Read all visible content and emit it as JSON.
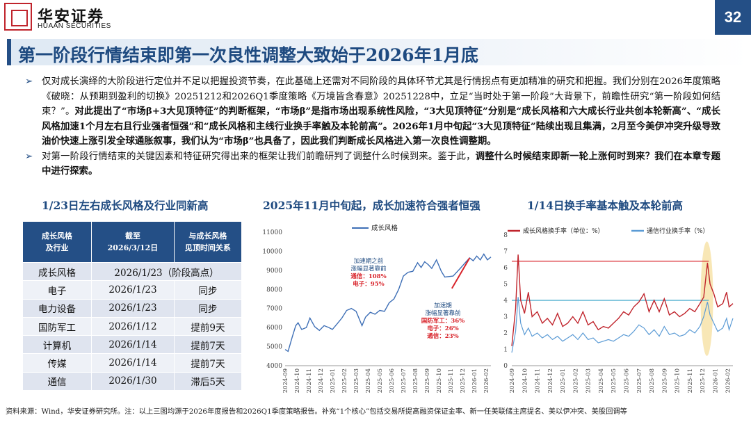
{
  "header": {
    "logo_cn": "华安证券",
    "logo_en": "HUAAN SECURITIES",
    "page_number": "32"
  },
  "title": "第一阶段行情结束即第一次良性调整大致始于2026年1月底",
  "bullets": {
    "b1": [
      {
        "t": "仅对成长演绎的大阶段进行定位并不足以把握投资节奏，在此基础上还需对不同阶段的具体环节尤其是行情拐点有更加精准的研究和把握。我们分别在2026年度策略《破晓：从预期到盈利的切换》20251212和2026Q1季度策略《万境皆含春意》20251228中，立足“当时处于第一阶段”大背景下，前瞻性研究“第一阶段如何结束？”。",
        "b": false
      },
      {
        "t": "对此提出了“市场β+3大见顶特征”的判断框架，“市场β”是指市场出现系统性风险，“3大见顶特征”分别是“成长风格和六大成长行业共创本轮新高”、“成长风格加速1个月左右且行业强者恒强”和“成长风格和主线行业换手率触及本轮前高”。2026年1月中旬起“3大见顶特征”陆续出现且集满，2月至今美伊冲突升级导致油价快速上涨引发全球通胀叙事，我们认为“市场β”也具备了，因此我们判断成长风格进入第一次良性调整期。",
        "b": true
      }
    ],
    "b2": [
      {
        "t": "对第一阶段行情结束的关键因素和特征研究得出来的框架让我们前瞻研判了调整什么时候到来。鉴于此，",
        "b": false
      },
      {
        "t": "调整什么时候结束即新一轮上涨何时到来？我们在本章专题中进行探索。",
        "b": true
      }
    ]
  },
  "sections": {
    "s1": "1/23日左右成长风格及行业同新高",
    "s2": "2025年11月中旬起，成长加速符合强者恒强",
    "s3": "1/14日换手率基本触及本轮前高"
  },
  "table": {
    "headers": [
      [
        "成长风格",
        "及行业"
      ],
      [
        "截至",
        "2026/3/12日"
      ],
      [
        "与成长风格",
        "见顶时间关系"
      ]
    ],
    "rows": [
      [
        "成长风格",
        "2026/1/23（阶段高点）",
        ""
      ],
      [
        "电子",
        "2026/1/23",
        "同步"
      ],
      [
        "电力设备",
        "2026/1/23",
        "同步"
      ],
      [
        "国防军工",
        "2026/1/12",
        "提前9天"
      ],
      [
        "计算机",
        "2026/1/14",
        "提前7天"
      ],
      [
        "传媒",
        "2026/1/14",
        "提前7天"
      ],
      [
        "通信",
        "2026/1/30",
        "滞后5天"
      ]
    ]
  },
  "chart_data": [
    {
      "type": "line",
      "title": "",
      "legend": [
        "成长风格"
      ],
      "colors": {
        "series": "#3e6fb6",
        "highlight": "#d8232a"
      },
      "x_ticks": [
        "2024-09",
        "2024-10",
        "2024-11",
        "2024-12",
        "2025-01",
        "2025-02",
        "2025-03",
        "2025-04",
        "2025-05",
        "2025-06",
        "2025-07",
        "2025-08",
        "2025-09",
        "2025-10",
        "2025-11",
        "2025-12",
        "2026-01",
        "2026-02"
      ],
      "ylim": [
        4000,
        11000
      ],
      "y_ticks": [
        4000,
        5000,
        6000,
        7000,
        8000,
        9000,
        10000,
        11000
      ],
      "series": [
        {
          "name": "成长风格",
          "points": [
            [
              0,
              4850
            ],
            [
              0.25,
              4750
            ],
            [
              0.6,
              5500
            ],
            [
              0.9,
              6100
            ],
            [
              1.1,
              6250
            ],
            [
              1.4,
              5900
            ],
            [
              1.8,
              6000
            ],
            [
              2.1,
              6500
            ],
            [
              2.5,
              6050
            ],
            [
              2.9,
              5850
            ],
            [
              3.3,
              6100
            ],
            [
              3.7,
              6000
            ],
            [
              4.0,
              5900
            ],
            [
              4.4,
              6200
            ],
            [
              4.8,
              6500
            ],
            [
              5.2,
              6900
            ],
            [
              5.6,
              7000
            ],
            [
              6.0,
              6850
            ],
            [
              6.5,
              6100
            ],
            [
              6.8,
              6550
            ],
            [
              7.2,
              6800
            ],
            [
              7.6,
              6700
            ],
            [
              8.0,
              6900
            ],
            [
              8.4,
              6850
            ],
            [
              8.8,
              7300
            ],
            [
              9.2,
              7500
            ],
            [
              9.6,
              8000
            ],
            [
              10.0,
              8700
            ],
            [
              10.4,
              8900
            ],
            [
              10.8,
              8950
            ],
            [
              11.2,
              9400
            ],
            [
              11.5,
              9150
            ],
            [
              11.8,
              9450
            ],
            [
              12.1,
              9300
            ],
            [
              12.4,
              9100
            ],
            [
              12.8,
              9550
            ],
            [
              13.2,
              8950
            ],
            [
              13.5,
              8650
            ],
            [
              14.2,
              8700
            ],
            [
              14.8,
              9100
            ],
            [
              15.3,
              9450
            ],
            [
              15.6,
              9650
            ],
            [
              15.9,
              9500
            ],
            [
              16.2,
              9750
            ],
            [
              16.5,
              9550
            ],
            [
              16.8,
              9850
            ],
            [
              17.1,
              9550
            ],
            [
              17.4,
              9700
            ]
          ]
        }
      ],
      "highlight_segment": [
        [
          14.1,
          8050
        ],
        [
          15.6,
          9650
        ]
      ],
      "annotations": [
        {
          "lines": [
            "加速期之前",
            "涨幅显著靠前"
          ],
          "red": [
            "通信：108%",
            "电子：95%"
          ]
        },
        {
          "lines": [
            "加速期",
            "涨幅显著靠前"
          ],
          "red": [
            "国防军工：36%",
            "电子：26%",
            "通信：23%"
          ]
        }
      ]
    },
    {
      "type": "line",
      "title": "",
      "legend": [
        "成长风格换手率（单位：%）",
        "通信行业换手率（%）"
      ],
      "colors": {
        "s1": "#c0242c",
        "s2": "#5b9bd5",
        "h1": "#d8232a",
        "h2": "#3fa7c9",
        "band": "#f2d37a"
      },
      "x_ticks": [
        "2024-09",
        "2024-10",
        "2024-11",
        "2024-12",
        "2025-01",
        "2025-02",
        "2025-03",
        "2025-04",
        "2025-05",
        "2025-06",
        "2025-07",
        "2025-08",
        "2025-09",
        "2025-10",
        "2025-11",
        "2025-12",
        "2026-01",
        "2026-02"
      ],
      "ylim": [
        0,
        8
      ],
      "y_ticks": [
        0,
        1,
        2,
        3,
        4,
        5,
        6,
        7,
        8
      ],
      "hlines": [
        6.4,
        4.0
      ],
      "series": [
        {
          "name": "成长风格换手率（单位：%）",
          "points": [
            [
              0,
              1.2
            ],
            [
              0.3,
              3.5
            ],
            [
              0.5,
              6.8
            ],
            [
              0.7,
              4.0
            ],
            [
              1.0,
              3.2
            ],
            [
              1.3,
              4.5
            ],
            [
              1.6,
              3.0
            ],
            [
              2.0,
              3.3
            ],
            [
              2.4,
              2.6
            ],
            [
              2.8,
              2.9
            ],
            [
              3.2,
              2.5
            ],
            [
              3.6,
              3.2
            ],
            [
              4.0,
              2.4
            ],
            [
              4.4,
              2.6
            ],
            [
              4.8,
              3.0
            ],
            [
              5.2,
              2.6
            ],
            [
              5.6,
              3.3
            ],
            [
              6.0,
              2.5
            ],
            [
              6.4,
              2.7
            ],
            [
              6.8,
              2.2
            ],
            [
              7.2,
              2.4
            ],
            [
              7.6,
              2.3
            ],
            [
              8.0,
              2.6
            ],
            [
              8.4,
              2.9
            ],
            [
              8.8,
              3.3
            ],
            [
              9.2,
              3.1
            ],
            [
              9.6,
              3.6
            ],
            [
              10.0,
              3.9
            ],
            [
              10.4,
              4.4
            ],
            [
              10.8,
              3.3
            ],
            [
              11.2,
              4.0
            ],
            [
              11.6,
              3.3
            ],
            [
              12.0,
              4.1
            ],
            [
              12.4,
              3.1
            ],
            [
              12.8,
              3.3
            ],
            [
              13.2,
              3.0
            ],
            [
              13.6,
              3.2
            ],
            [
              14.0,
              3.5
            ],
            [
              14.4,
              3.3
            ],
            [
              14.8,
              3.8
            ],
            [
              15.1,
              4.2
            ],
            [
              15.4,
              6.3
            ],
            [
              15.6,
              5.0
            ],
            [
              15.9,
              4.4
            ],
            [
              16.2,
              3.6
            ],
            [
              16.6,
              3.8
            ],
            [
              16.9,
              4.5
            ],
            [
              17.1,
              3.6
            ],
            [
              17.4,
              3.8
            ]
          ]
        },
        {
          "name": "通信行业换手率（%）",
          "points": [
            [
              0,
              0.8
            ],
            [
              0.3,
              2.1
            ],
            [
              0.5,
              4.2
            ],
            [
              0.7,
              2.6
            ],
            [
              1.0,
              1.9
            ],
            [
              1.3,
              2.3
            ],
            [
              1.6,
              1.8
            ],
            [
              2.0,
              2.0
            ],
            [
              2.4,
              1.7
            ],
            [
              2.8,
              1.9
            ],
            [
              3.2,
              1.6
            ],
            [
              3.6,
              1.8
            ],
            [
              4.0,
              1.5
            ],
            [
              4.4,
              1.7
            ],
            [
              4.8,
              1.9
            ],
            [
              5.2,
              1.6
            ],
            [
              5.6,
              2.0
            ],
            [
              6.0,
              1.6
            ],
            [
              6.4,
              1.7
            ],
            [
              6.8,
              1.4
            ],
            [
              7.2,
              1.5
            ],
            [
              7.6,
              1.6
            ],
            [
              8.0,
              1.5
            ],
            [
              8.4,
              1.7
            ],
            [
              8.8,
              1.9
            ],
            [
              9.2,
              1.8
            ],
            [
              9.6,
              2.1
            ],
            [
              10.0,
              2.5
            ],
            [
              10.4,
              2.3
            ],
            [
              10.8,
              1.9
            ],
            [
              11.2,
              2.2
            ],
            [
              11.6,
              1.8
            ],
            [
              12.0,
              2.4
            ],
            [
              12.4,
              1.9
            ],
            [
              12.8,
              2.0
            ],
            [
              13.2,
              1.8
            ],
            [
              13.6,
              1.9
            ],
            [
              14.0,
              2.2
            ],
            [
              14.4,
              2.0
            ],
            [
              14.8,
              2.4
            ],
            [
              15.1,
              3.0
            ],
            [
              15.4,
              3.9
            ],
            [
              15.6,
              3.1
            ],
            [
              15.9,
              2.6
            ],
            [
              16.2,
              2.1
            ],
            [
              16.6,
              2.3
            ],
            [
              16.9,
              2.9
            ],
            [
              17.1,
              2.2
            ],
            [
              17.4,
              2.9
            ]
          ]
        }
      ]
    }
  ],
  "footer": "资料来源：Wind，华安证券研究所。注：以上三图均源于2026年度报告和2026Q1季度策略报告。补充“1个核心”包括交易所提高融资保证金率、新一任美联储主席提名、美以伊冲突、美股回调等"
}
